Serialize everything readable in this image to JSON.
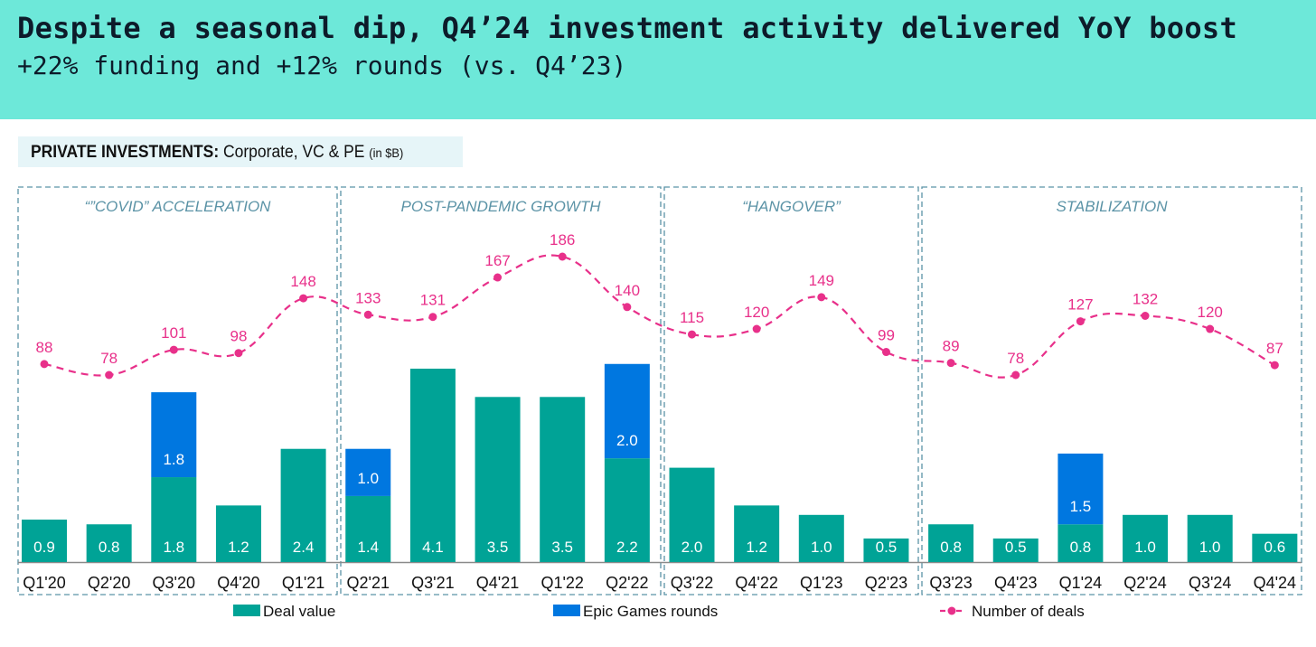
{
  "header": {
    "title": "Despite a seasonal dip, Q4’24 investment activity delivered YoY boost",
    "subtitle": "+22% funding and +12% rounds (vs. Q4’23)"
  },
  "chart_label": {
    "bold": "PRIVATE INVESTMENTS:",
    "regular": " Corporate, VC & PE ",
    "unit": "(in $B)"
  },
  "colors": {
    "header_bg": "#6de8d9",
    "deal_value": "#00a396",
    "epic_games": "#0077e0",
    "deals_line": "#e8308a",
    "period_border": "#5b93a6",
    "period_label": "#5b93a6"
  },
  "chart_data": {
    "type": "bar",
    "title": "PRIVATE INVESTMENTS: Corporate, VC & PE (in $B)",
    "xlabel": "",
    "ylabel": "",
    "categories": [
      "Q1'20",
      "Q2'20",
      "Q3'20",
      "Q4'20",
      "Q1'21",
      "Q2'21",
      "Q3'21",
      "Q4'21",
      "Q1'22",
      "Q2'22",
      "Q3'22",
      "Q4'22",
      "Q1'23",
      "Q2'23",
      "Q3'23",
      "Q4'23",
      "Q1'24",
      "Q2'24",
      "Q3'24",
      "Q4'24"
    ],
    "series": [
      {
        "name": "Deal value",
        "type": "bar",
        "stack": "total",
        "values": [
          0.9,
          0.8,
          1.8,
          1.2,
          2.4,
          1.4,
          4.1,
          3.5,
          3.5,
          2.2,
          2.0,
          1.2,
          1.0,
          0.5,
          0.8,
          0.5,
          0.8,
          1.0,
          1.0,
          0.6
        ]
      },
      {
        "name": "Epic Games rounds",
        "type": "bar",
        "stack": "total",
        "values": [
          null,
          null,
          1.8,
          null,
          null,
          1.0,
          null,
          null,
          null,
          2.0,
          null,
          null,
          null,
          null,
          null,
          null,
          1.5,
          null,
          null,
          null
        ]
      },
      {
        "name": "Number of deals",
        "type": "line",
        "values": [
          88,
          78,
          101,
          98,
          148,
          133,
          131,
          167,
          186,
          140,
          115,
          120,
          149,
          99,
          89,
          78,
          127,
          132,
          120,
          87
        ]
      }
    ],
    "periods": [
      {
        "label": "“”COVID” ACCELERATION",
        "from": "Q1'20",
        "to": "Q1'21"
      },
      {
        "label": "POST-PANDEMIC GROWTH",
        "from": "Q2'21",
        "to": "Q2'22"
      },
      {
        "label": "“HANGOVER”",
        "from": "Q3'22",
        "to": "Q2'23"
      },
      {
        "label": "STABILIZATION",
        "from": "Q3'23",
        "to": "Q4'24"
      }
    ],
    "legend": {
      "position": "bottom",
      "items": [
        "Deal value",
        "Epic Games rounds",
        "Number of deals"
      ]
    },
    "grid": false
  }
}
